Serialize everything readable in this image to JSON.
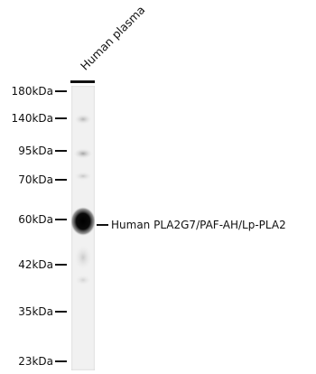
{
  "lane": {
    "label": "Human plasma"
  },
  "markers": [
    "180kDa",
    "140kDa",
    "95kDa",
    "70kDa",
    "60kDa",
    "42kDa",
    "35kDa",
    "23kDa"
  ],
  "target": {
    "label": "Human PLA2G7/PAF-AH/Lp-PLA2"
  }
}
